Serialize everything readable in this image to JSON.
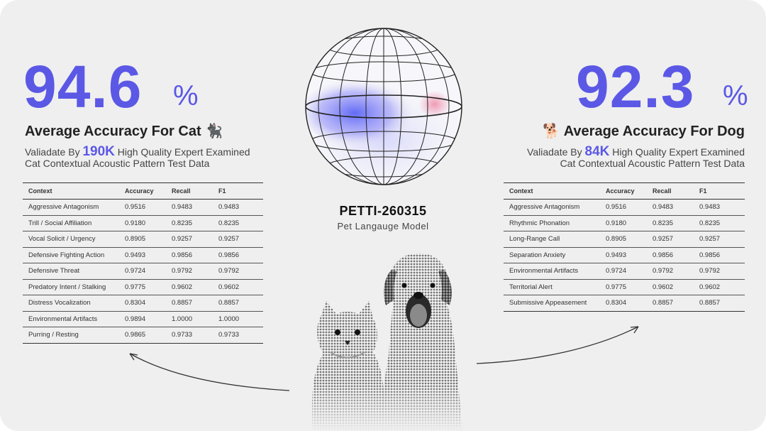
{
  "cat": {
    "value": "94.6",
    "unit": "%",
    "title": "Average Accuracy For Cat 🐈‍⬛",
    "sub_prefix": "Valiadate By ",
    "count": "190K",
    "sub_suffix": " High Quality Expert Examined",
    "sub_line2": "Cat Contextual Acoustic Pattern Test Data",
    "headers": [
      "Context",
      "Accuracy",
      "Recall",
      "F1"
    ],
    "rows": [
      [
        "Aggressive Antagonism",
        "0.9516",
        "0.9483",
        "0.9483"
      ],
      [
        "Trill / Social Affiliation",
        "0.9180",
        "0.8235",
        "0.8235"
      ],
      [
        "Vocal Solicit / Urgency",
        "0.8905",
        "0.9257",
        "0.9257"
      ],
      [
        "Defensive Fighting Action",
        "0.9493",
        "0.9856",
        "0.9856"
      ],
      [
        "Defensive Threat",
        "0.9724",
        "0.9792",
        "0.9792"
      ],
      [
        "Predatory Intent / Stalking",
        "0.9775",
        "0.9602",
        "0.9602"
      ],
      [
        "Distress Vocalization",
        "0.8304",
        "0.8857",
        "0.8857"
      ],
      [
        "Environmental Artifacts",
        "0.9894",
        "1.0000",
        "1.0000"
      ],
      [
        "Purring / Resting",
        "0.9865",
        "0.9733",
        "0.9733"
      ]
    ]
  },
  "dog": {
    "value": "92.3",
    "unit": "%",
    "title": "🐕 Average Accuracy For Dog",
    "sub_prefix": "Valiadate By ",
    "count": "84K",
    "sub_suffix": " High Quality Expert Examined",
    "sub_line2": "Cat Contextual Acoustic Pattern Test Data",
    "headers": [
      "Context",
      "Accuracy",
      "Recall",
      "F1"
    ],
    "rows": [
      [
        "Aggressive Antagonism",
        "0.9516",
        "0.9483",
        "0.9483"
      ],
      [
        "Rhythmic Phonation",
        "0.9180",
        "0.8235",
        "0.8235"
      ],
      [
        "Long-Range Call",
        "0.8905",
        "0.9257",
        "0.9257"
      ],
      [
        "Separation Anxiety",
        "0.9493",
        "0.9856",
        "0.9856"
      ],
      [
        "Environmental Artifacts",
        "0.9724",
        "0.9792",
        "0.9792"
      ],
      [
        "Territorial Alert",
        "0.9775",
        "0.9602",
        "0.9602"
      ],
      [
        "Submissive Appeasement",
        "0.8304",
        "0.8857",
        "0.8857"
      ]
    ]
  },
  "model": {
    "name": "PETTI-260315",
    "subtitle": "Pet Langauge Model"
  },
  "colors": {
    "accent": "#5b58e6",
    "background": "#efefef"
  }
}
